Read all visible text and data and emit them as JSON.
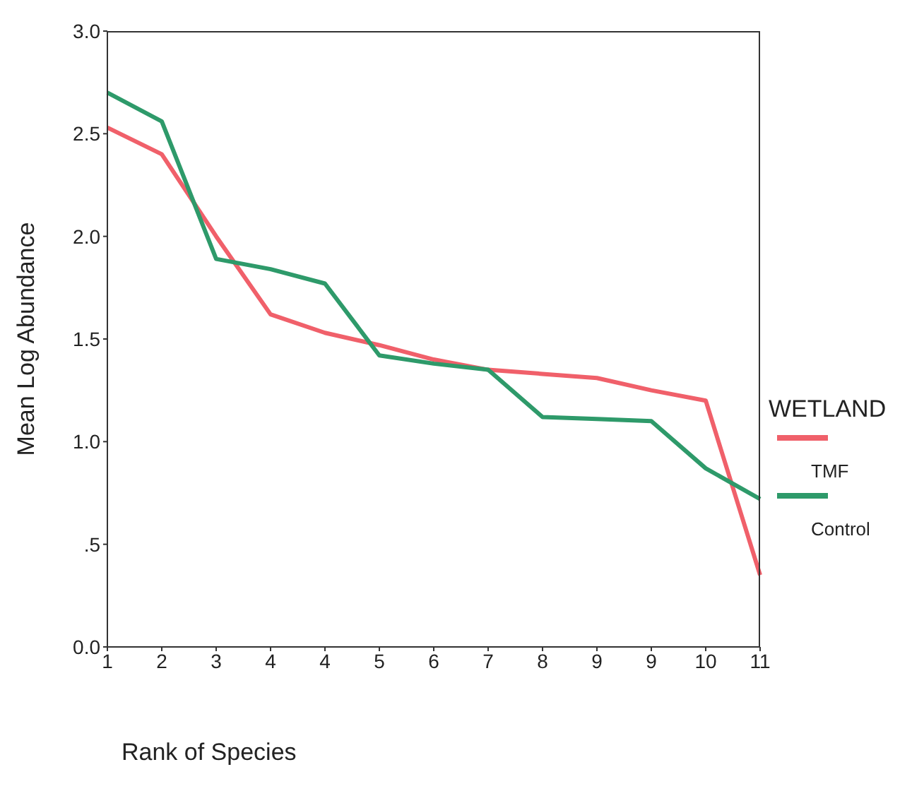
{
  "chart_data": {
    "type": "line",
    "xlabel": "Rank of Species",
    "ylabel": "Mean Log Abundance",
    "legend_title": "WETLAND",
    "categories": [
      "1",
      "2",
      "3",
      "4",
      "4",
      "5",
      "6",
      "7",
      "8",
      "9",
      "9",
      "10",
      "11"
    ],
    "series": [
      {
        "name": "TMF",
        "color": "#f0606a",
        "values": [
          2.53,
          2.4,
          2.0,
          1.62,
          1.53,
          1.47,
          1.4,
          1.35,
          1.33,
          1.31,
          1.25,
          1.2,
          0.35
        ]
      },
      {
        "name": "Control",
        "color": "#2e9a6a",
        "values": [
          2.7,
          2.56,
          1.89,
          1.84,
          1.77,
          1.42,
          1.38,
          1.35,
          1.12,
          1.11,
          1.1,
          0.87,
          0.72
        ]
      }
    ],
    "ylim": [
      0,
      3
    ],
    "yticks": [
      {
        "value": 0,
        "label": "0.0"
      },
      {
        "value": 0.5,
        "label": ".5"
      },
      {
        "value": 1,
        "label": "1.0"
      },
      {
        "value": 1.5,
        "label": "1.5"
      },
      {
        "value": 2,
        "label": "2.0"
      },
      {
        "value": 2.5,
        "label": "2.5"
      },
      {
        "value": 3,
        "label": "3.0"
      }
    ],
    "grid": false,
    "legend": "right",
    "marker": "none",
    "line_style": "solid"
  }
}
